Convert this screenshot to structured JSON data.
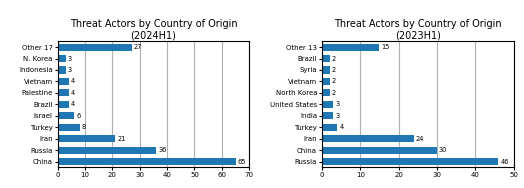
{
  "chart_data": [
    {
      "type": "bar",
      "orientation": "horizontal",
      "title": "Threat Actors by Country of Origin\n(2024H1)",
      "categories": [
        "Other 17",
        "N. Korea",
        "Indonesia",
        "Vietnam",
        "Palestine",
        "Brazil",
        "Israel",
        "Turkey",
        "Iran",
        "Russia",
        "China"
      ],
      "values": [
        27,
        3,
        3,
        4,
        4,
        4,
        6,
        8,
        21,
        36,
        65
      ],
      "xlim": [
        0,
        70
      ],
      "xticks": [
        0,
        10,
        20,
        30,
        40,
        50,
        60,
        70
      ],
      "grid": true,
      "data_labels": true
    },
    {
      "type": "bar",
      "orientation": "horizontal",
      "title": "Threat Actors by Country of Origin\n(2023H1)",
      "categories": [
        "Other 13",
        "Brazil",
        "Syria",
        "Vietnam",
        "North Korea",
        "United States",
        "India",
        "Turkey",
        "Iran",
        "China",
        "Russia"
      ],
      "values": [
        15,
        2,
        2,
        2,
        2,
        3,
        3,
        4,
        24,
        30,
        46
      ],
      "xlim": [
        0,
        50
      ],
      "xticks": [
        0,
        10,
        20,
        30,
        40,
        50
      ],
      "grid": true,
      "data_labels": true
    }
  ]
}
